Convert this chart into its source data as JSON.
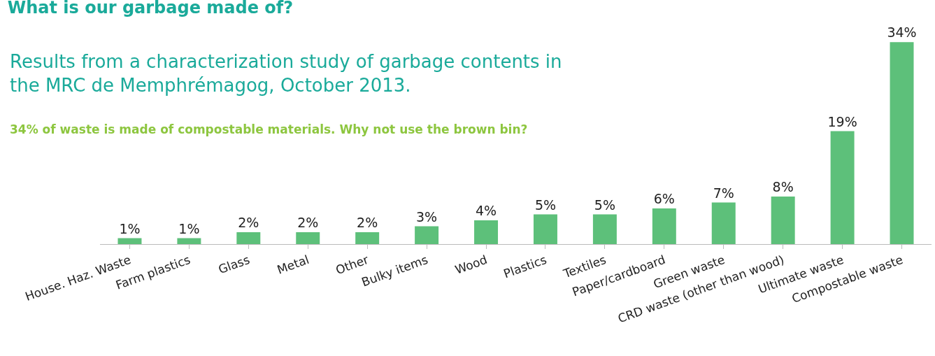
{
  "chart_data": {
    "type": "bar",
    "title": "What is our garbage made of?",
    "subtitle": "Results from a characterization study of garbage contents in\nthe MRC de Memphrémagog, October 2013.",
    "annotations": [
      "34% of waste is made of compostable materials. Why not use the brown bin?"
    ],
    "categories": [
      "House. Haz. Waste",
      "Farm plastics",
      "Glass",
      "Metal",
      "Other",
      "Bulky items",
      "Wood",
      "Plastics",
      "Textiles",
      "Paper/cardboard",
      "Green waste",
      "CRD waste (other than wood)",
      "Ultimate waste",
      "Compostable waste"
    ],
    "values": [
      1,
      1,
      2,
      2,
      2,
      3,
      4,
      5,
      5,
      6,
      7,
      8,
      19,
      34
    ],
    "value_labels": [
      "1%",
      "1%",
      "2%",
      "2%",
      "2%",
      "3%",
      "4%",
      "5%",
      "5%",
      "6%",
      "7%",
      "8%",
      "19%",
      "34%"
    ],
    "color": "#5dc07a",
    "grid": false,
    "legend": false
  }
}
